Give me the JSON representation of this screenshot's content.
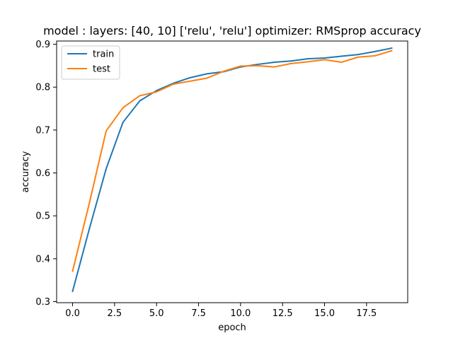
{
  "chart_data": {
    "type": "line",
    "title": "model : layers: [40, 10] ['relu', 'relu'] optimizer: RMSprop accuracy",
    "xlabel": "epoch",
    "ylabel": "accuracy",
    "xlim": [
      -0.95,
      19.95
    ],
    "ylim": [
      0.2975,
      0.9075
    ],
    "xticks": [
      0.0,
      2.5,
      5.0,
      7.5,
      10.0,
      12.5,
      15.0,
      17.5
    ],
    "xtick_labels": [
      "0.0",
      "2.5",
      "5.0",
      "7.5",
      "10.0",
      "12.5",
      "15.0",
      "17.5"
    ],
    "yticks": [
      0.3,
      0.4,
      0.5,
      0.6,
      0.7,
      0.8,
      0.9
    ],
    "ytick_labels": [
      "0.3",
      "0.4",
      "0.5",
      "0.6",
      "0.7",
      "0.8",
      "0.9"
    ],
    "grid": false,
    "legend_position": "top-left",
    "x": [
      0,
      1,
      2,
      3,
      4,
      5,
      6,
      7,
      8,
      9,
      10,
      11,
      12,
      13,
      14,
      15,
      16,
      17,
      18,
      19
    ],
    "series": [
      {
        "name": "train",
        "color": "#1f77b4",
        "values": [
          0.324,
          0.47,
          0.61,
          0.718,
          0.768,
          0.792,
          0.809,
          0.822,
          0.831,
          0.836,
          0.847,
          0.853,
          0.858,
          0.861,
          0.866,
          0.868,
          0.872,
          0.876,
          0.883,
          0.891
        ]
      },
      {
        "name": "test",
        "color": "#ff7f0e",
        "values": [
          0.371,
          0.53,
          0.698,
          0.752,
          0.78,
          0.789,
          0.807,
          0.814,
          0.821,
          0.837,
          0.849,
          0.85,
          0.847,
          0.855,
          0.859,
          0.864,
          0.858,
          0.87,
          0.873,
          0.885
        ]
      }
    ]
  }
}
